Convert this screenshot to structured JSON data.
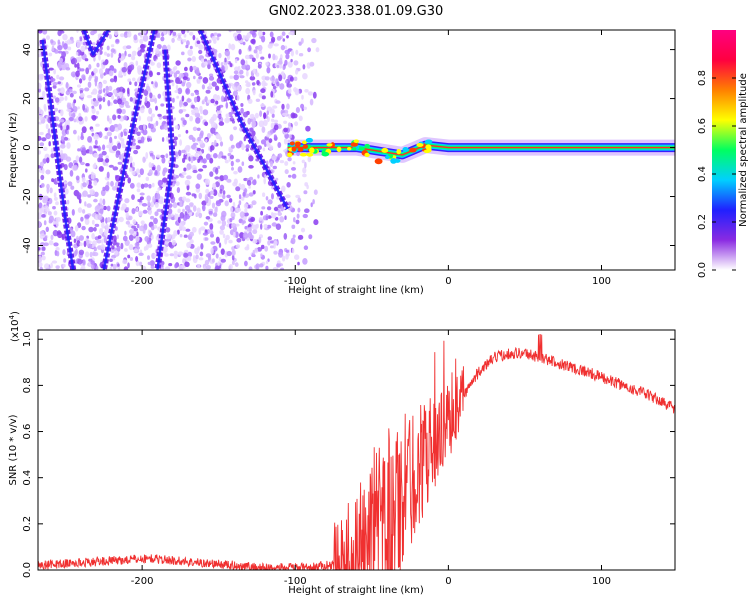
{
  "title": "GN02.2023.338.01.09.G30",
  "chart_data": [
    {
      "type": "heatmap",
      "xlabel": "Height of straight line (km)",
      "ylabel": "Frequency (Hz)",
      "xlim": [
        -268,
        148
      ],
      "ylim": [
        -50,
        48
      ],
      "x_ticks": [
        "-200",
        "-100",
        "0",
        "100"
      ],
      "x_tick_values": [
        -200,
        -100,
        0,
        100
      ],
      "y_ticks": [
        "40",
        "20",
        "0",
        "-20",
        "-40"
      ],
      "y_tick_values": [
        40,
        20,
        0,
        -20,
        -40
      ],
      "colorbar": {
        "label": "Normalized spectral amplitude",
        "range": [
          0,
          1
        ],
        "ticks": [
          "0.0",
          "0.2",
          "0.4",
          "0.6",
          "0.8"
        ],
        "tick_values": [
          0.0,
          0.2,
          0.4,
          0.6,
          0.8
        ],
        "colors": [
          "#ffffff",
          "#8a2be2",
          "#2020ff",
          "#00d0ff",
          "#00ff60",
          "#ffff00",
          "#ff8000",
          "#ff0040",
          "#ff0080"
        ]
      },
      "features": [
        {
          "name": "diagonal-1",
          "points": [
            [
              -265,
              44
            ],
            [
              -250,
              -30
            ],
            [
              -245,
              -50
            ]
          ]
        },
        {
          "name": "diagonal-2",
          "points": [
            [
              -238,
              48
            ],
            [
              -232,
              38
            ],
            [
              -222,
              48
            ]
          ]
        },
        {
          "name": "diagonal-3",
          "points": [
            [
              -192,
              48
            ],
            [
              -205,
              12
            ],
            [
              -225,
              -50
            ]
          ]
        },
        {
          "name": "diagonal-4",
          "points": [
            [
              -185,
              40
            ],
            [
              -180,
              -5
            ],
            [
              -190,
              -50
            ]
          ]
        },
        {
          "name": "diagonal-5",
          "points": [
            [
              -162,
              48
            ],
            [
              -135,
              10
            ],
            [
              -105,
              -25
            ]
          ]
        },
        {
          "name": "spectral-line",
          "points": [
            [
              -105,
              0
            ],
            [
              -60,
              0
            ],
            [
              -30,
              -3
            ],
            [
              -15,
              1
            ],
            [
              0,
              0
            ],
            [
              148,
              0
            ]
          ]
        }
      ]
    },
    {
      "type": "line",
      "xlabel": "Height of straight line (km)",
      "ylabel": "SNR (10 * v/v)",
      "multiplier": "(x10^4)",
      "xlim": [
        -268,
        148
      ],
      "ylim": [
        0,
        1.04
      ],
      "x_ticks": [
        "-200",
        "-100",
        "0",
        "100"
      ],
      "x_tick_values": [
        -200,
        -100,
        0,
        100
      ],
      "y_ticks": [
        "0.0",
        "0.2",
        "0.4",
        "0.6",
        "0.8",
        "1.0"
      ],
      "y_tick_values": [
        0.0,
        0.2,
        0.4,
        0.6,
        0.8,
        1.0
      ],
      "color": "#f03030",
      "envelope": [
        [
          -268,
          0.02
        ],
        [
          -220,
          0.04
        ],
        [
          -195,
          0.05
        ],
        [
          -160,
          0.03
        ],
        [
          -120,
          0.01
        ],
        [
          -90,
          0.01
        ],
        [
          -70,
          0.03
        ],
        [
          -60,
          0.08
        ],
        [
          -50,
          0.12
        ],
        [
          -40,
          0.2
        ],
        [
          -30,
          0.32
        ],
        [
          -20,
          0.45
        ],
        [
          -10,
          0.55
        ],
        [
          0,
          0.64
        ],
        [
          10,
          0.76
        ],
        [
          20,
          0.86
        ],
        [
          30,
          0.92
        ],
        [
          40,
          0.94
        ],
        [
          50,
          0.94
        ],
        [
          60,
          0.92
        ],
        [
          70,
          0.9
        ],
        [
          90,
          0.86
        ],
        [
          110,
          0.81
        ],
        [
          130,
          0.76
        ],
        [
          148,
          0.7
        ]
      ]
    }
  ]
}
